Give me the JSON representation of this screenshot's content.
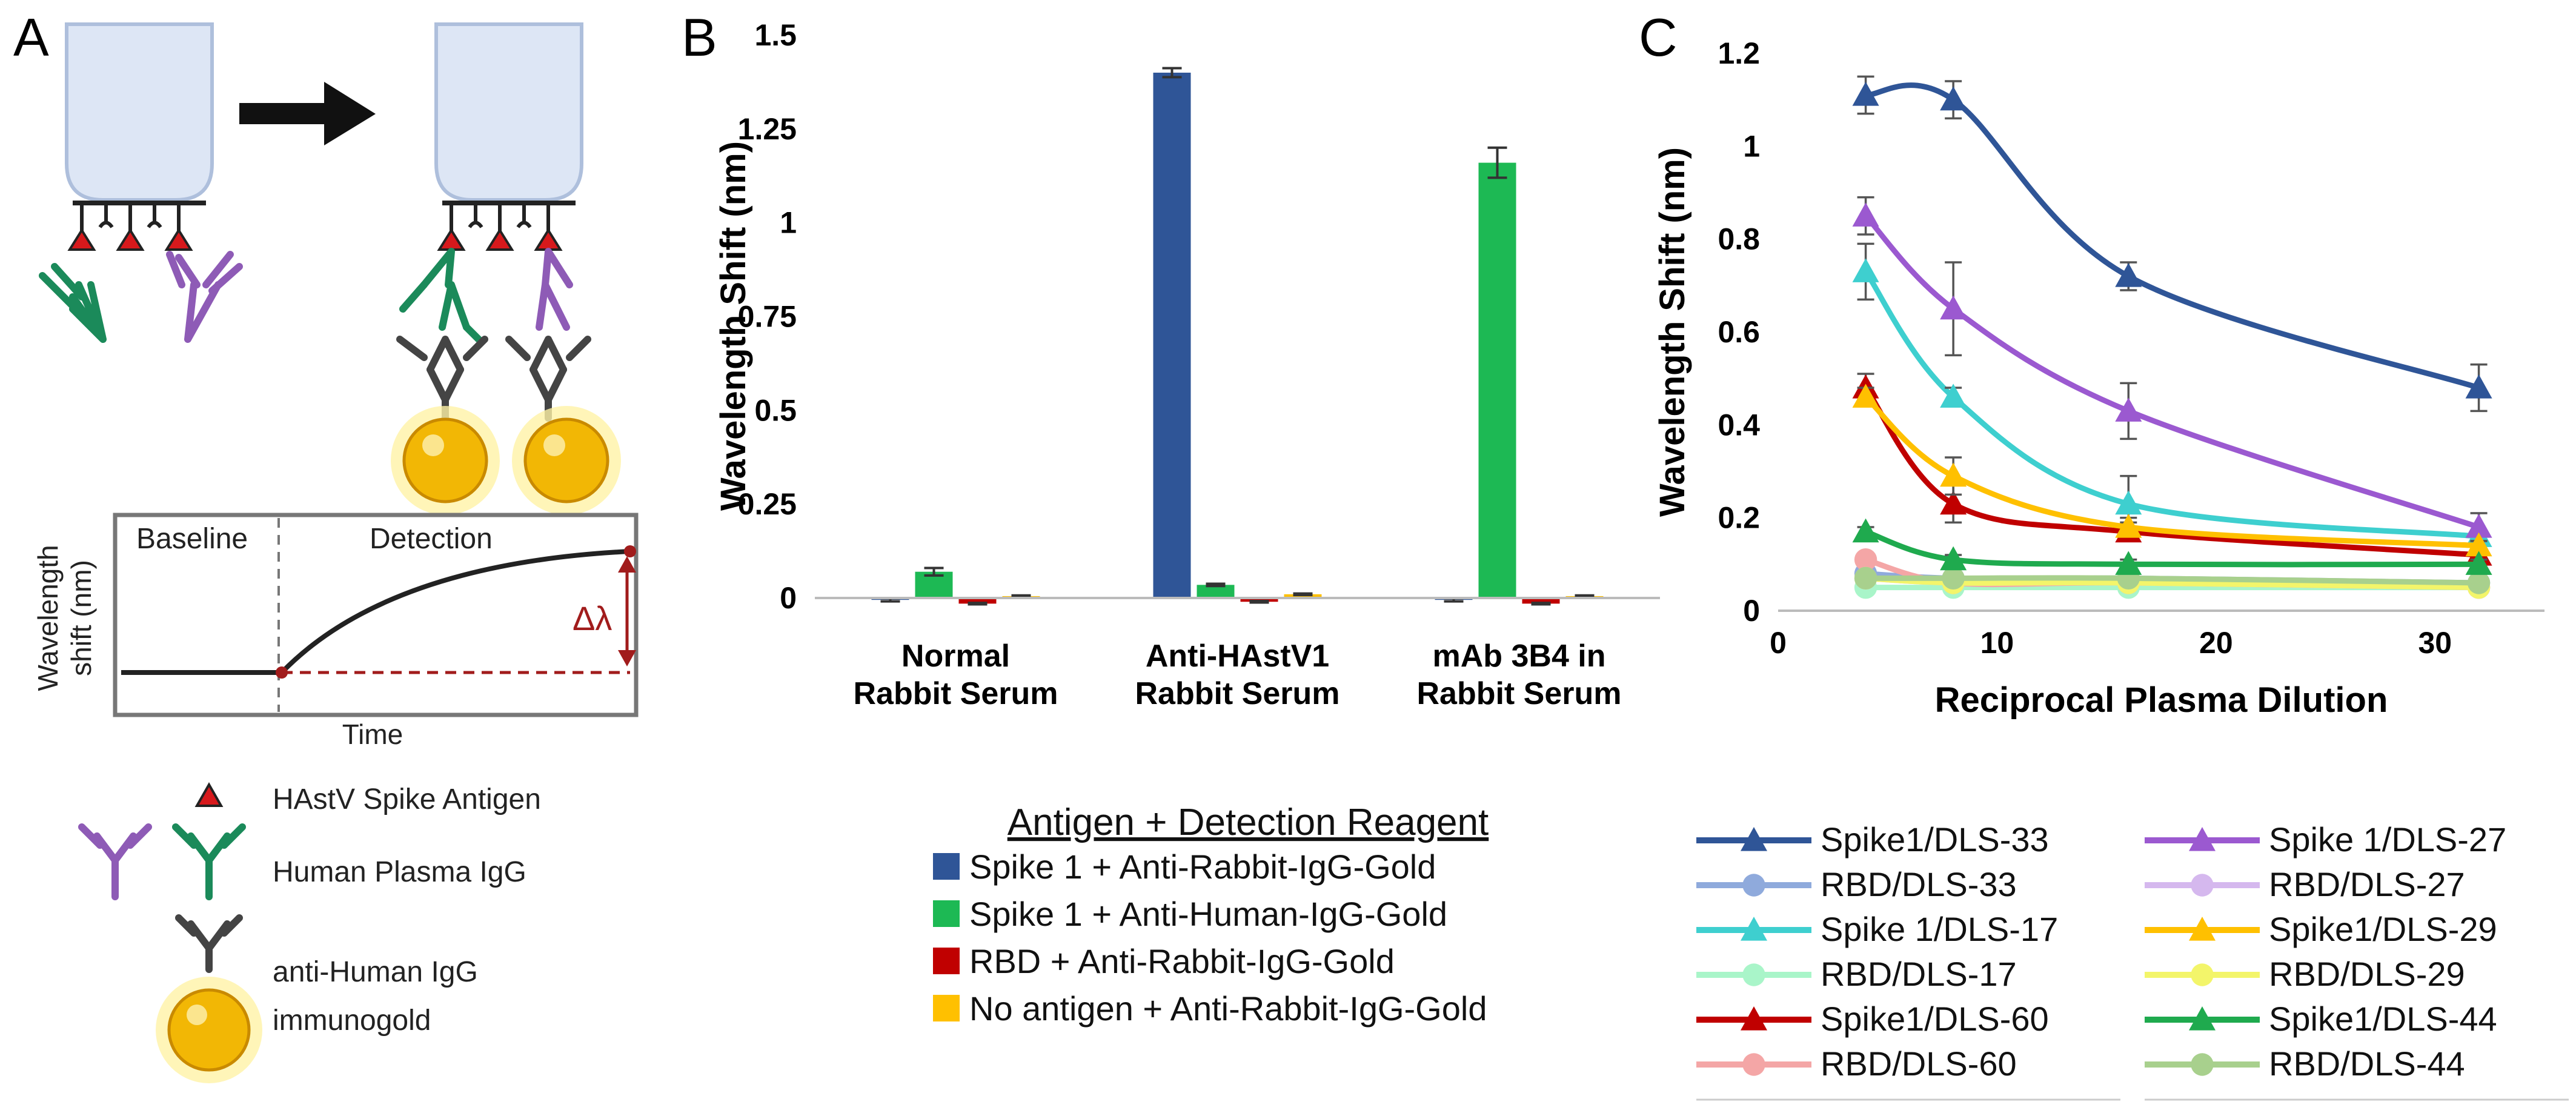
{
  "panel_labels": {
    "a": "A",
    "b": "B",
    "c": "C"
  },
  "panel_a": {
    "baseline_label": "Baseline",
    "detection_label": "Detection",
    "ylabel_line1": "Wavelength",
    "ylabel_line2": "shift (nm)",
    "xlabel": "Time",
    "delta_label": "Δλ",
    "legend": {
      "antigen": "HAstV Spike Antigen",
      "igg": "Human Plasma IgG",
      "gold_line1": "anti-Human IgG",
      "gold_line2": "immunogold"
    },
    "colors": {
      "antigen": "#d7191c",
      "igg_green": "#1b8a5a",
      "igg_purple": "#8e5bb6",
      "gold": "#f2b705",
      "gray_ab": "#444444",
      "delta": "#a11c1c"
    }
  },
  "chart_data": [
    {
      "type": "bar",
      "title": "",
      "xlabel": "",
      "ylabel": "Wavelength Shift (nm)",
      "ylim": [
        -0.05,
        1.5
      ],
      "yticks": [
        "1.5",
        "1.25",
        "1",
        "0.75",
        "0.5",
        "0.25",
        "0"
      ],
      "ytick_values": [
        1.5,
        1.25,
        1,
        0.75,
        0.5,
        0.25,
        0
      ],
      "categories": [
        [
          "Normal",
          "Rabbit Serum"
        ],
        [
          "Anti-HAstV1",
          "Rabbit Serum"
        ],
        [
          "mAb 3B4 in",
          "Rabbit Serum"
        ]
      ],
      "legend_title": "Antigen + Detection Reagent",
      "series": [
        {
          "name": "Spike 1 + Anti-Rabbit-IgG-Gold",
          "color": "#2f5597",
          "values": [
            -0.005,
            1.4,
            -0.005
          ],
          "errors": [
            0.004,
            0.012,
            0.004
          ]
        },
        {
          "name": "Spike 1 + Anti-Human-IgG-Gold",
          "color": "#1db954",
          "values": [
            0.07,
            0.035,
            1.16
          ],
          "errors": [
            0.01,
            0.003,
            0.04
          ]
        },
        {
          "name": "RBD + Anti-Rabbit-IgG-Gold",
          "color": "#c00000",
          "values": [
            -0.015,
            -0.01,
            -0.015
          ],
          "errors": [
            0.002,
            0.002,
            0.002
          ]
        },
        {
          "name": "No antigen + Anti-Rabbit-IgG-Gold",
          "color": "#ffc000",
          "values": [
            0.005,
            0.01,
            0.005
          ],
          "errors": [
            0.002,
            0.002,
            0.002
          ]
        }
      ]
    },
    {
      "type": "line",
      "title": "",
      "xlabel": "Reciprocal Plasma Dilution",
      "ylabel": "Wavelength Shift (nm)",
      "xlim": [
        0,
        35
      ],
      "ylim": [
        0,
        1.2
      ],
      "xticks": [
        0,
        10,
        20,
        30
      ],
      "xtick_labels": [
        "0",
        "10",
        "20",
        "30"
      ],
      "yticks": [
        0,
        0.2,
        0.4,
        0.6,
        0.8,
        1,
        1.2
      ],
      "ytick_labels": [
        "0",
        "0.2",
        "0.4",
        "0.6",
        "0.8",
        "1",
        "1.2"
      ],
      "x": [
        4,
        8,
        16,
        32
      ],
      "series": [
        {
          "name": "Spike1/DLS-33",
          "color": "#2f5597",
          "marker": "triangle",
          "values": [
            1.11,
            1.1,
            0.72,
            0.48
          ],
          "errors": [
            0.04,
            0.04,
            0.03,
            0.05
          ],
          "legend_col": 0
        },
        {
          "name": "RBD/DLS-33",
          "color": "#8faadc",
          "marker": "circle",
          "values": [
            0.08,
            0.07,
            0.07,
            0.06
          ],
          "errors": [
            0,
            0,
            0,
            0
          ],
          "legend_col": 0
        },
        {
          "name": "Spike 1/DLS-17",
          "color": "#3ecfcf",
          "marker": "triangle",
          "values": [
            0.73,
            0.46,
            0.23,
            0.16
          ],
          "errors": [
            0.06,
            0.02,
            0.06,
            0.01
          ],
          "legend_col": 0
        },
        {
          "name": "RBD/DLS-17",
          "color": "#a9f5c9",
          "marker": "circle",
          "values": [
            0.05,
            0.05,
            0.05,
            0.05
          ],
          "errors": [
            0,
            0,
            0,
            0
          ],
          "legend_col": 0
        },
        {
          "name": "Spike1/DLS-60",
          "color": "#c00000",
          "marker": "triangle",
          "values": [
            0.48,
            0.23,
            0.17,
            0.12
          ],
          "errors": [
            0.03,
            0.04,
            0.02,
            0.01
          ],
          "legend_col": 0
        },
        {
          "name": "RBD/DLS-60",
          "color": "#f4a6a6",
          "marker": "circle",
          "values": [
            0.11,
            0.06,
            0.06,
            0.05
          ],
          "errors": [
            0,
            0,
            0,
            0
          ],
          "legend_col": 0
        },
        {
          "name": "Spike 1/DLS-27",
          "color": "#9b59d0",
          "marker": "triangle",
          "values": [
            0.85,
            0.65,
            0.43,
            0.18
          ],
          "errors": [
            0.04,
            0.1,
            0.06,
            0.03
          ],
          "legend_col": 1
        },
        {
          "name": "RBD/DLS-27",
          "color": "#d5b8ee",
          "marker": "circle",
          "values": [
            0.07,
            0.06,
            0.06,
            0.05
          ],
          "errors": [
            0,
            0,
            0,
            0
          ],
          "legend_col": 1
        },
        {
          "name": "Spike1/DLS-29",
          "color": "#ffc000",
          "marker": "triangle",
          "values": [
            0.46,
            0.29,
            0.18,
            0.14
          ],
          "errors": [
            0.02,
            0.04,
            0.02,
            0.01
          ],
          "legend_col": 1
        },
        {
          "name": "RBD/DLS-29",
          "color": "#f3f56a",
          "marker": "circle",
          "values": [
            0.07,
            0.06,
            0.06,
            0.05
          ],
          "errors": [
            0,
            0,
            0,
            0
          ],
          "legend_col": 1
        },
        {
          "name": "Spike1/DLS-44",
          "color": "#1faa4e",
          "marker": "triangle",
          "values": [
            0.17,
            0.11,
            0.1,
            0.1
          ],
          "errors": [
            0.01,
            0.01,
            0.01,
            0.01
          ],
          "legend_col": 1
        },
        {
          "name": "RBD/DLS-44",
          "color": "#a8d08d",
          "marker": "circle",
          "values": [
            0.07,
            0.07,
            0.07,
            0.06
          ],
          "errors": [
            0,
            0,
            0,
            0
          ],
          "legend_col": 1
        }
      ]
    }
  ]
}
